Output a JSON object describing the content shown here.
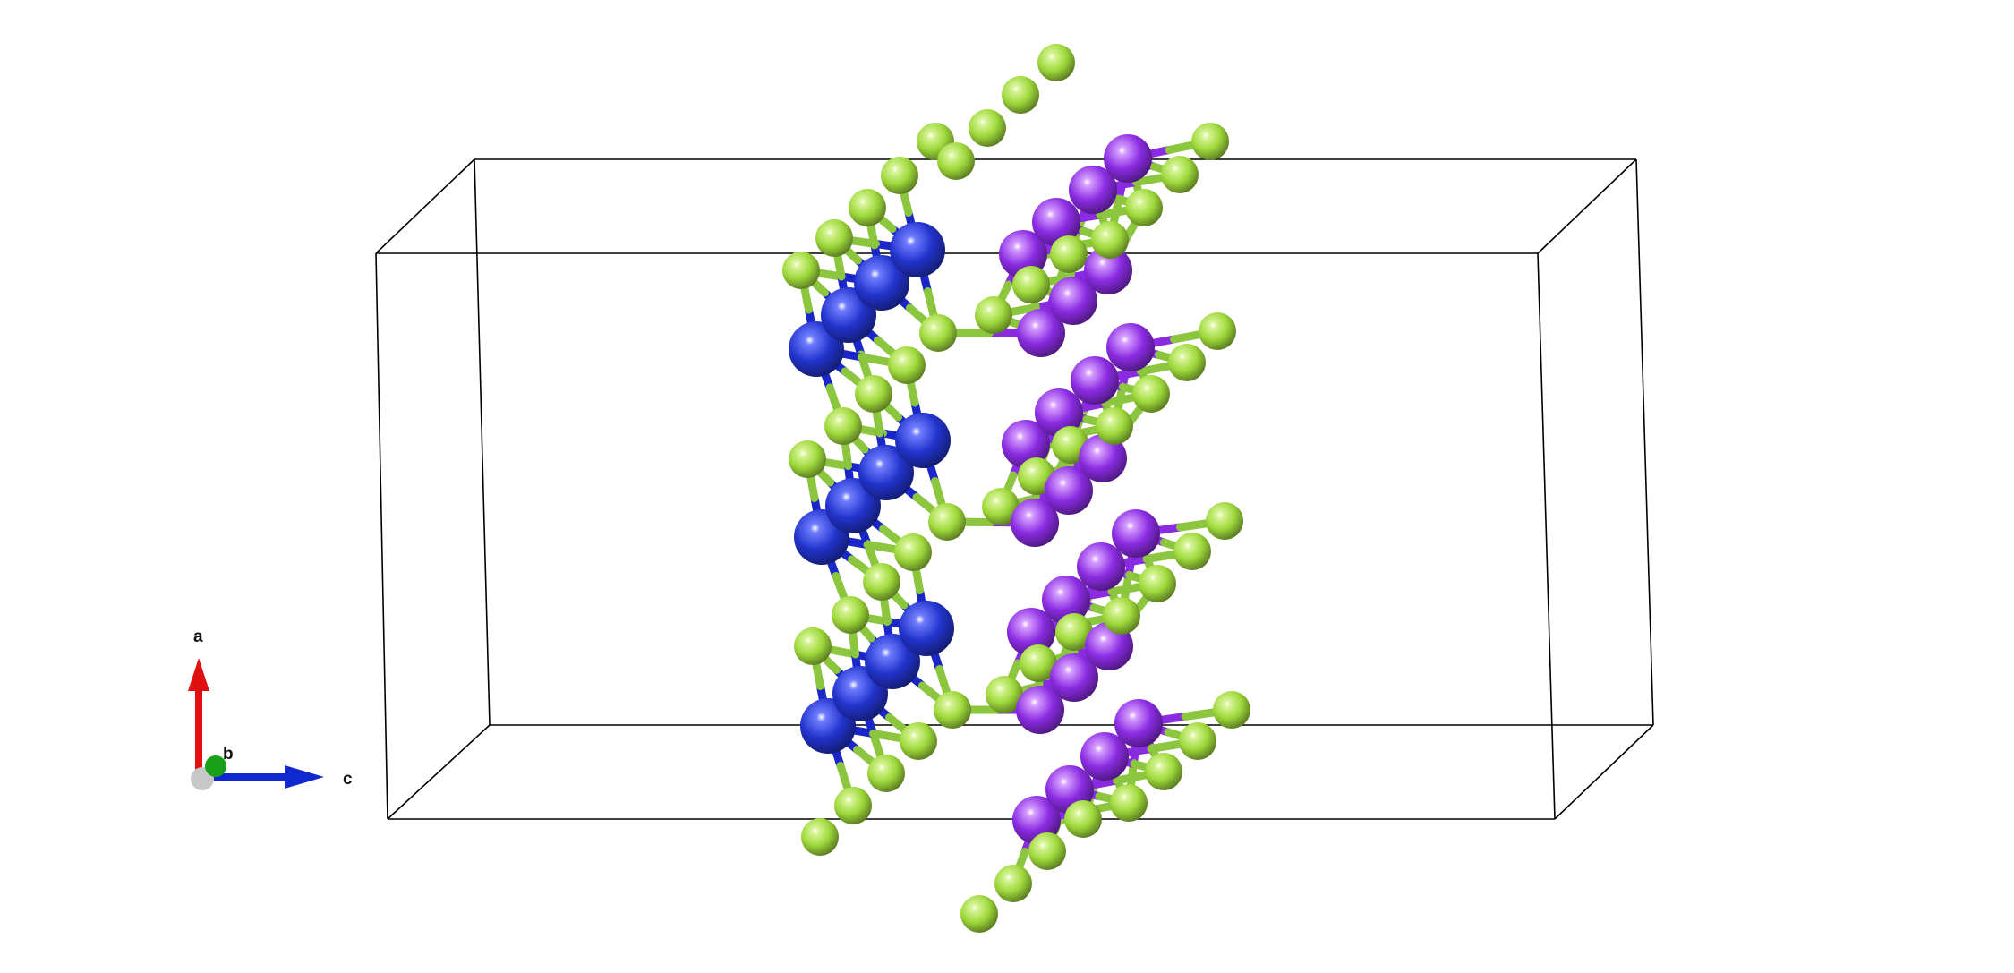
{
  "axes_indicator": {
    "labels": {
      "a": "a",
      "b": "b",
      "c": "c"
    },
    "colors": {
      "a": "#e01010",
      "b": "#18a018",
      "c": "#1028d0",
      "origin": "#c8c8c8"
    }
  },
  "atom_colors": {
    "green": "#9ed83a",
    "blue": "#2233cc",
    "purple": "#8a2be2"
  },
  "bond_colors": {
    "blue_half": "#1a26c8",
    "purple_half": "#8a2be2",
    "green_half": "#8cc63f"
  },
  "cell_line_color": "#000000"
}
